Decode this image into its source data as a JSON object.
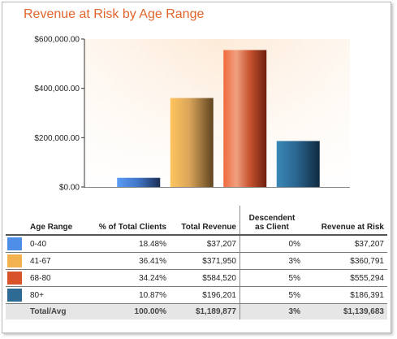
{
  "title": "Revenue at Risk by Age Range",
  "chart_data": {
    "type": "bar",
    "title": "Revenue at Risk by Age Range",
    "categories": [
      "0-40",
      "41-67",
      "68-80",
      "80+"
    ],
    "values": [
      37207,
      360791,
      555294,
      186391
    ],
    "colors": [
      "#4f8ee8",
      "#f2b250",
      "#d9532a",
      "#2d6a94"
    ],
    "ylim": [
      0,
      600000
    ],
    "yticks": [
      0,
      200000,
      400000,
      600000
    ],
    "ytick_labels": [
      "$0.00",
      "$200,000.00",
      "$400,000.00",
      "$600,000.00"
    ],
    "grid": false,
    "legend": "none"
  },
  "table": {
    "headers": {
      "age_range": "Age Range",
      "pct_clients": "% of Total Clients",
      "total_revenue": "Total Revenue",
      "descendent_line1": "Descendent",
      "descendent_line2": "as Client",
      "revenue_at_risk": "Revenue at Risk"
    },
    "rows": [
      {
        "age_range": "0-40",
        "pct_clients": "18.48%",
        "total_revenue": "$37,207",
        "descendent": "0%",
        "revenue_at_risk": "$37,207",
        "color": "#4f8ee8"
      },
      {
        "age_range": "41-67",
        "pct_clients": "36.41%",
        "total_revenue": "$371,950",
        "descendent": "3%",
        "revenue_at_risk": "$360,791",
        "color": "#f2b250"
      },
      {
        "age_range": "68-80",
        "pct_clients": "34.24%",
        "total_revenue": "$584,520",
        "descendent": "5%",
        "revenue_at_risk": "$555,294",
        "color": "#d9532a"
      },
      {
        "age_range": "80+",
        "pct_clients": "10.87%",
        "total_revenue": "$196,201",
        "descendent": "5%",
        "revenue_at_risk": "$186,391",
        "color": "#2d6a94"
      }
    ],
    "total": {
      "age_range": "Total/Avg",
      "pct_clients": "100.00%",
      "total_revenue": "$1,189,877",
      "descendent": "3%",
      "revenue_at_risk": "$1,139,683"
    }
  }
}
